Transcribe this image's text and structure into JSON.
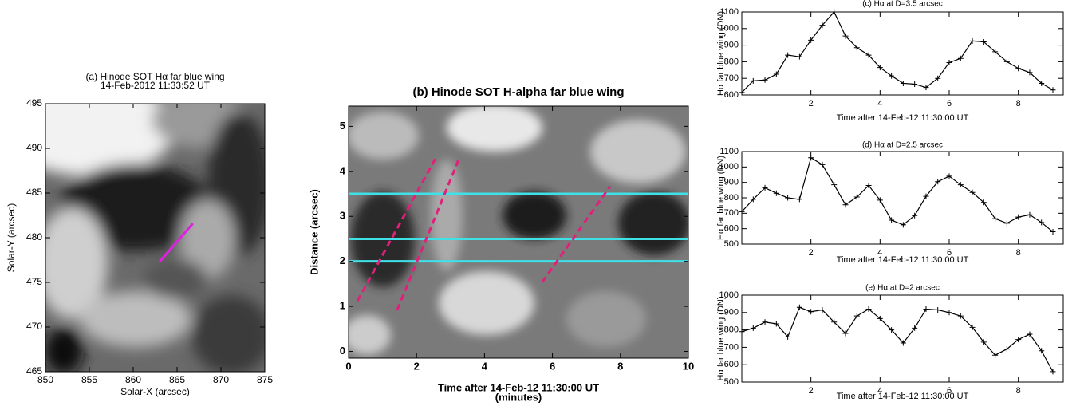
{
  "chart_data": [
    {
      "type": "image",
      "title": "(a) Hinode SOT Hα far blue wing",
      "subtitle": "14-Feb-2012 11:33:52 UT",
      "xlabel": "Solar-X (arcsec)",
      "ylabel": "Solar-Y (arcsec)",
      "xlim": [
        850,
        875
      ],
      "ylim": [
        465,
        495
      ],
      "xticks": [
        850,
        855,
        860,
        865,
        870,
        875
      ],
      "yticks": [
        465,
        470,
        475,
        480,
        485,
        490,
        495
      ],
      "lines": [
        {
          "x": [
            863.0,
            866.8
          ],
          "y": [
            477.3,
            481.6
          ],
          "color": "#e020e0",
          "dashed": false
        }
      ]
    },
    {
      "type": "image",
      "title": "(b) Hinode SOT H-alpha far blue wing",
      "xlabel": "Time after 14-Feb-12 11:30:00 UT",
      "xlabel2": "(minutes)",
      "ylabel": "Distance (arcsec)",
      "xlim": [
        0,
        10
      ],
      "ylim": [
        -0.15,
        5.45
      ],
      "xticks": [
        0,
        2,
        4,
        6,
        8,
        10
      ],
      "yticks": [
        0,
        1,
        2,
        3,
        4,
        5
      ],
      "hlines": {
        "values": [
          2,
          2.5,
          3.5
        ],
        "color": "#40e0e8"
      },
      "lines": [
        {
          "x": [
            0.26,
            2.56
          ],
          "y": [
            1.12,
            4.29
          ],
          "color": "#e0207a",
          "dashed": true
        },
        {
          "x": [
            1.43,
            3.24
          ],
          "y": [
            0.92,
            4.26
          ],
          "color": "#e0207a",
          "dashed": true
        },
        {
          "x": [
            5.7,
            7.7
          ],
          "y": [
            1.54,
            3.67
          ],
          "color": "#e0207a",
          "dashed": true
        }
      ]
    },
    {
      "type": "line",
      "title": "(c) Hα at D=3.5 arcsec",
      "xlabel": "Time after 14-Feb-12 11:30:00 UT",
      "ylabel": "Hα far blue wing (DN)",
      "x": [
        0,
        0.33,
        0.67,
        1,
        1.33,
        1.67,
        2,
        2.33,
        2.67,
        3,
        3.33,
        3.67,
        4,
        4.33,
        4.67,
        5,
        5.33,
        5.67,
        6,
        6.33,
        6.67,
        7,
        7.33,
        7.67,
        8,
        8.33,
        8.67,
        9
      ],
      "series": [
        {
          "color": "#000000",
          "values": [
            615,
            685,
            690,
            725,
            840,
            830,
            930,
            1020,
            1100,
            955,
            885,
            840,
            765,
            715,
            670,
            665,
            645,
            700,
            795,
            820,
            925,
            920,
            860,
            800,
            760,
            735,
            670,
            630
          ]
        }
      ],
      "xlim": [
        0,
        9.3
      ],
      "ylim": [
        600,
        1100
      ],
      "xticks": [
        2,
        4,
        6,
        8
      ],
      "yticks": [
        600,
        700,
        800,
        900,
        1000,
        1100
      ]
    },
    {
      "type": "line",
      "title": "(d) Hα at D=2.5 arcsec",
      "xlabel": "Time after 14-Feb-12 11:30:00 UT",
      "ylabel": "Hα far blue wing (DN)",
      "x": [
        0,
        0.33,
        0.67,
        1,
        1.33,
        1.67,
        2,
        2.33,
        2.67,
        3,
        3.33,
        3.67,
        4,
        4.33,
        4.67,
        5,
        5.33,
        5.67,
        6,
        6.33,
        6.67,
        7,
        7.33,
        7.67,
        8,
        8.33,
        8.67,
        9
      ],
      "series": [
        {
          "color": "#000000",
          "values": [
            710,
            790,
            865,
            830,
            800,
            790,
            1060,
            1015,
            885,
            755,
            805,
            880,
            785,
            655,
            625,
            685,
            810,
            905,
            940,
            885,
            835,
            770,
            665,
            635,
            675,
            690,
            640,
            580
          ]
        }
      ],
      "xlim": [
        0,
        9.3
      ],
      "ylim": [
        500,
        1100
      ],
      "xticks": [
        2,
        4,
        6,
        8
      ],
      "yticks": [
        500,
        600,
        700,
        800,
        900,
        1000,
        1100
      ]
    },
    {
      "type": "line",
      "title": "(e) Hα at D=2 arcsec",
      "xlabel": "Time after 14-Feb-12 11:30:00 UT",
      "ylabel": "Hα far blue wing (DN)",
      "x": [
        0,
        0.33,
        0.67,
        1,
        1.33,
        1.67,
        2,
        2.33,
        2.67,
        3,
        3.33,
        3.67,
        4,
        4.33,
        4.67,
        5,
        5.33,
        5.67,
        6,
        6.33,
        6.67,
        7,
        7.33,
        7.67,
        8,
        8.33,
        8.67,
        9
      ],
      "series": [
        {
          "color": "#000000",
          "values": [
            790,
            810,
            845,
            835,
            760,
            930,
            905,
            915,
            845,
            780,
            880,
            920,
            865,
            800,
            725,
            810,
            920,
            915,
            900,
            880,
            815,
            730,
            655,
            690,
            745,
            775,
            680,
            560
          ]
        }
      ],
      "xlim": [
        0,
        9.3
      ],
      "ylim": [
        500,
        1000
      ],
      "xticks": [
        2,
        4,
        6,
        8
      ],
      "yticks": [
        500,
        600,
        700,
        800,
        900,
        1000
      ]
    }
  ]
}
